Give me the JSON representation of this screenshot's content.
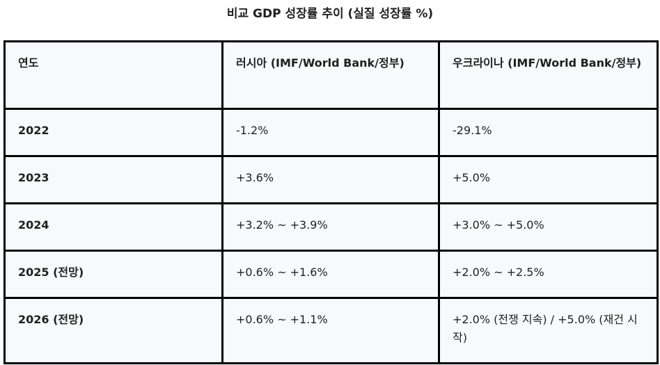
{
  "title": "비교 GDP 성장률 추이 (실질 성장률 %)",
  "table": {
    "headers": [
      "연도",
      "러시아 (IMF/World Bank/정부)",
      "우크라이나 (IMF/World Bank/정부)"
    ],
    "rows": [
      {
        "year": "2022",
        "russia": "-1.2%",
        "ukraine": "-29.1%"
      },
      {
        "year": "2023",
        "russia": "+3.6%",
        "ukraine": "+5.0%"
      },
      {
        "year": "2024",
        "russia": "+3.2% ~ +3.9%",
        "ukraine": "+3.0% ~ +5.0%"
      },
      {
        "year": "2025 (전망)",
        "russia": "+0.6% ~ +1.6%",
        "ukraine": "+2.0% ~ +2.5%"
      },
      {
        "year": "2026 (전망)",
        "russia": "+0.6% ~ +1.1%",
        "ukraine": "+2.0% (전쟁 지속) / +5.0% (재건 시작)"
      }
    ]
  },
  "colors": {
    "border": "#000000",
    "cell_background": "#f8f9fd",
    "text": "#1f1f1f"
  }
}
